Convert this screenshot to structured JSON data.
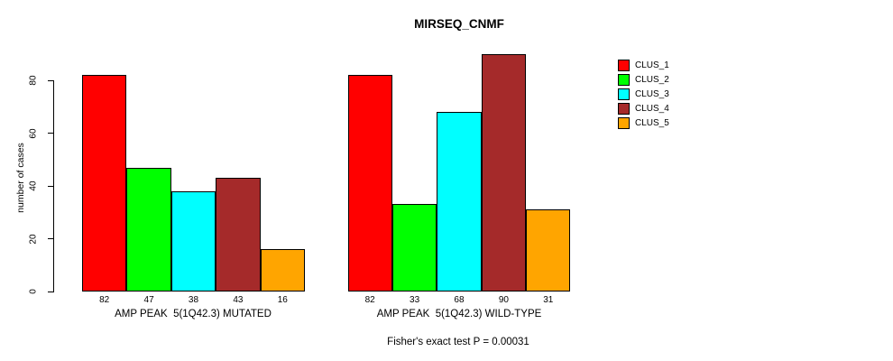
{
  "chart_data": {
    "type": "bar",
    "title": "MIRSEQ_CNMF",
    "ylabel": "number of cases",
    "yticks": [
      0,
      20,
      40,
      60,
      80
    ],
    "ylim": [
      0,
      90
    ],
    "grid": false,
    "legend_position": "right",
    "bar_value_labels_shown": true,
    "series": [
      "CLUS_1",
      "CLUS_2",
      "CLUS_3",
      "CLUS_4",
      "CLUS_5"
    ],
    "colors": [
      "#FF0000",
      "#00FF00",
      "#00FFFF",
      "#A52A2A",
      "#FFA500"
    ],
    "groups": [
      {
        "label": "AMP PEAK  5(1Q42.3) MUTATED",
        "values": [
          82,
          47,
          38,
          43,
          16
        ]
      },
      {
        "label": "AMP PEAK  5(1Q42.3) WILD-TYPE",
        "values": [
          82,
          33,
          68,
          90,
          31
        ]
      }
    ],
    "annotation": "Fisher's exact test P = 0.00031",
    "axis_color": "#000000",
    "background_color": "#FFFFFF"
  }
}
